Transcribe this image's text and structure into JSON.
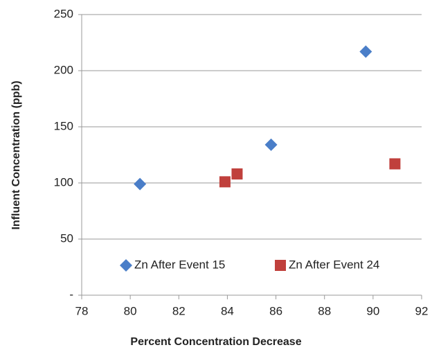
{
  "chart_data": {
    "type": "scatter",
    "x_label": "Percent  Concentration Decrease",
    "y_label": "Influent Concentration (ppb)",
    "series": [
      {
        "name": "Zn After Event 15",
        "color": "#4a7ec8",
        "marker": "diamond",
        "x": [
          80.4,
          85.8,
          89.7
        ],
        "values": [
          99,
          134,
          217
        ]
      },
      {
        "name": "Zn After Event 24",
        "color": "#c0403c",
        "marker": "square",
        "x": [
          83.9,
          84.4,
          90.9
        ],
        "values": [
          101,
          108,
          117
        ]
      }
    ],
    "xlim": [
      78,
      92
    ],
    "xticks": [
      78,
      80,
      82,
      84,
      86,
      88,
      90,
      92
    ],
    "ylim": [
      0,
      250
    ],
    "yticks": [
      {
        "value": 0,
        "label": "-"
      },
      50,
      100,
      150,
      200,
      250
    ],
    "grid": true,
    "legend": "bottom"
  }
}
